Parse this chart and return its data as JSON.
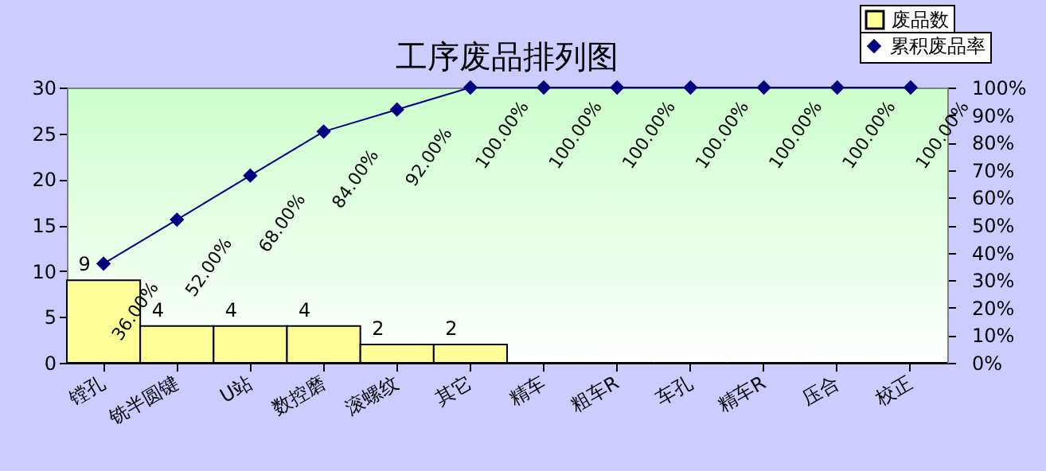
{
  "chart_data": {
    "type": "bar",
    "title": "工序废品排列图",
    "categories": [
      "镗孔",
      "铣半圆键",
      "U站",
      "数控磨",
      "滚螺纹",
      "其它",
      "精车",
      "粗车R",
      "车孔",
      "精车R",
      "压合",
      "校正"
    ],
    "series": [
      {
        "name": "废品数",
        "color": "#ffff99",
        "values": [
          9,
          4,
          4,
          4,
          2,
          2,
          0,
          0,
          0,
          0,
          0,
          0
        ],
        "value_labels": [
          "9",
          "4",
          "4",
          "4",
          "2",
          "2",
          null,
          null,
          null,
          null,
          null,
          null
        ]
      },
      {
        "name": "累积废品率",
        "type": "line",
        "axis": "y2",
        "color": "#000080",
        "values": [
          36,
          52,
          68,
          84,
          92,
          100,
          100,
          100,
          100,
          100,
          100,
          100
        ],
        "value_labels": [
          "36.00%",
          "52.00%",
          "68.00%",
          "84.00%",
          "92.00%",
          "100.00%",
          "100.00%",
          "100.00%",
          "100.00%",
          "100.00%",
          "100.00%",
          "100.00%"
        ]
      }
    ],
    "ylim": [
      0,
      30
    ],
    "yticks": [
      0,
      5,
      10,
      15,
      20,
      25,
      30
    ],
    "y2lim": [
      0,
      100
    ],
    "y2ticks": [
      {
        "value": 0,
        "label": "0%"
      },
      {
        "value": 10,
        "label": "10%"
      },
      {
        "value": 20,
        "label": "20%"
      },
      {
        "value": 30,
        "label": "30%"
      },
      {
        "value": 40,
        "label": "40%"
      },
      {
        "value": 50,
        "label": "50%"
      },
      {
        "value": 60,
        "label": "60%"
      },
      {
        "value": 70,
        "label": "70%"
      },
      {
        "value": 80,
        "label": "80%"
      },
      {
        "value": 90,
        "label": "90%"
      },
      {
        "value": 100,
        "label": "100%"
      }
    ],
    "marker": "diamond",
    "grid": false,
    "legend": "top right"
  }
}
